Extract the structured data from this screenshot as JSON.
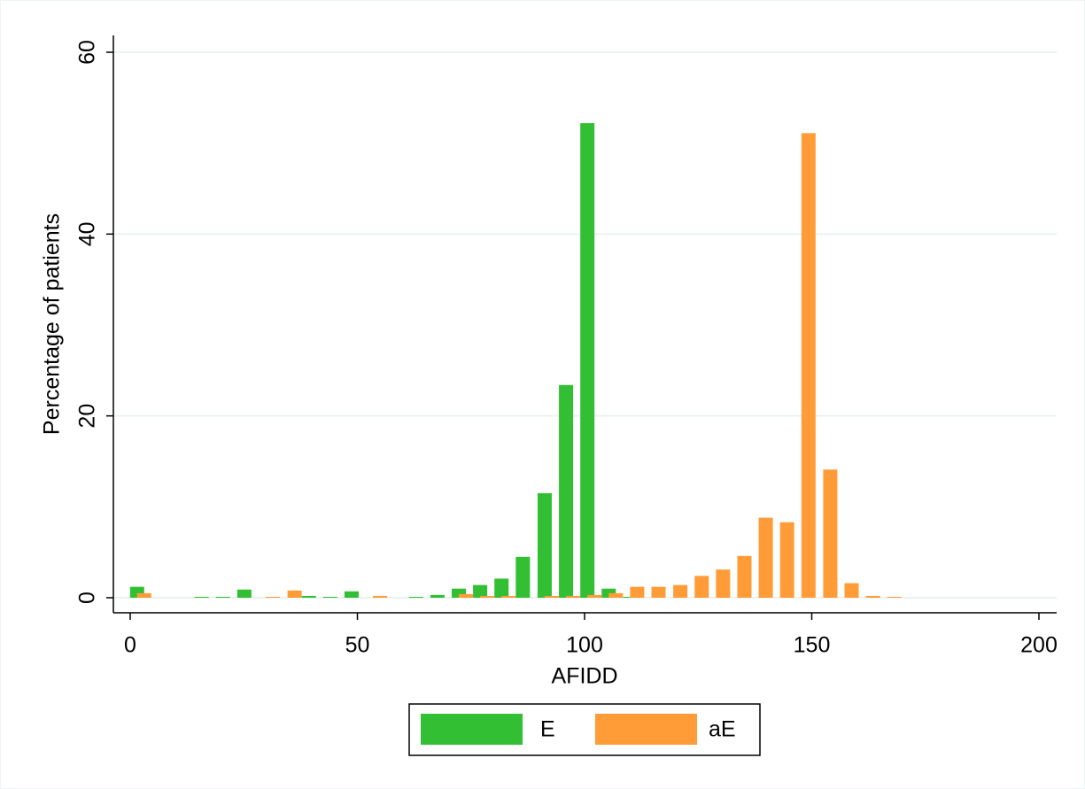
{
  "chart_data": {
    "type": "bar",
    "x_label": "AFIDD",
    "y_label": "Percentage of patients",
    "x": [
      2.3,
      7.1,
      11.8,
      16.5,
      21.2,
      25.9,
      30.6,
      35.4,
      40.1,
      44.8,
      49.5,
      54.2,
      59.0,
      63.7,
      68.4,
      73.1,
      77.8,
      82.5,
      87.2,
      92.0,
      96.7,
      101.4,
      106.1,
      110.8,
      115.5,
      120.3,
      125.0,
      129.7,
      134.4,
      139.1,
      143.8,
      148.5,
      153.3,
      158.0,
      162.7,
      167.4
    ],
    "series": [
      {
        "name": "E",
        "color": "#33bf33",
        "values": [
          1.2,
          0,
          0,
          0.1,
          0.1,
          0.9,
          0,
          0,
          0.2,
          0.1,
          0.7,
          0,
          0,
          0.1,
          0.3,
          1.0,
          1.4,
          2.1,
          4.5,
          11.5,
          23.4,
          52.2,
          1.0,
          0.1,
          0,
          0,
          0,
          0,
          0,
          0,
          0,
          0,
          0,
          0,
          0,
          0
        ]
      },
      {
        "name": "aE",
        "color": "#ff9c38",
        "values": [
          0.5,
          0,
          0,
          0,
          0,
          0,
          0.1,
          0.8,
          0,
          0,
          0,
          0.2,
          0,
          0,
          0,
          0.4,
          0.2,
          0.2,
          0,
          0.2,
          0.2,
          0.3,
          0.5,
          1.2,
          1.2,
          1.4,
          2.4,
          3.1,
          4.6,
          8.8,
          8.3,
          51.1,
          14.1,
          1.6,
          0.2,
          0.1
        ]
      }
    ],
    "xlim": [
      0,
      200
    ],
    "xticks": [
      0,
      50,
      100,
      150,
      200
    ],
    "ylim": [
      0,
      60
    ],
    "yticks": [
      0,
      20,
      40,
      60
    ],
    "grid": true,
    "legend": "bottom"
  }
}
